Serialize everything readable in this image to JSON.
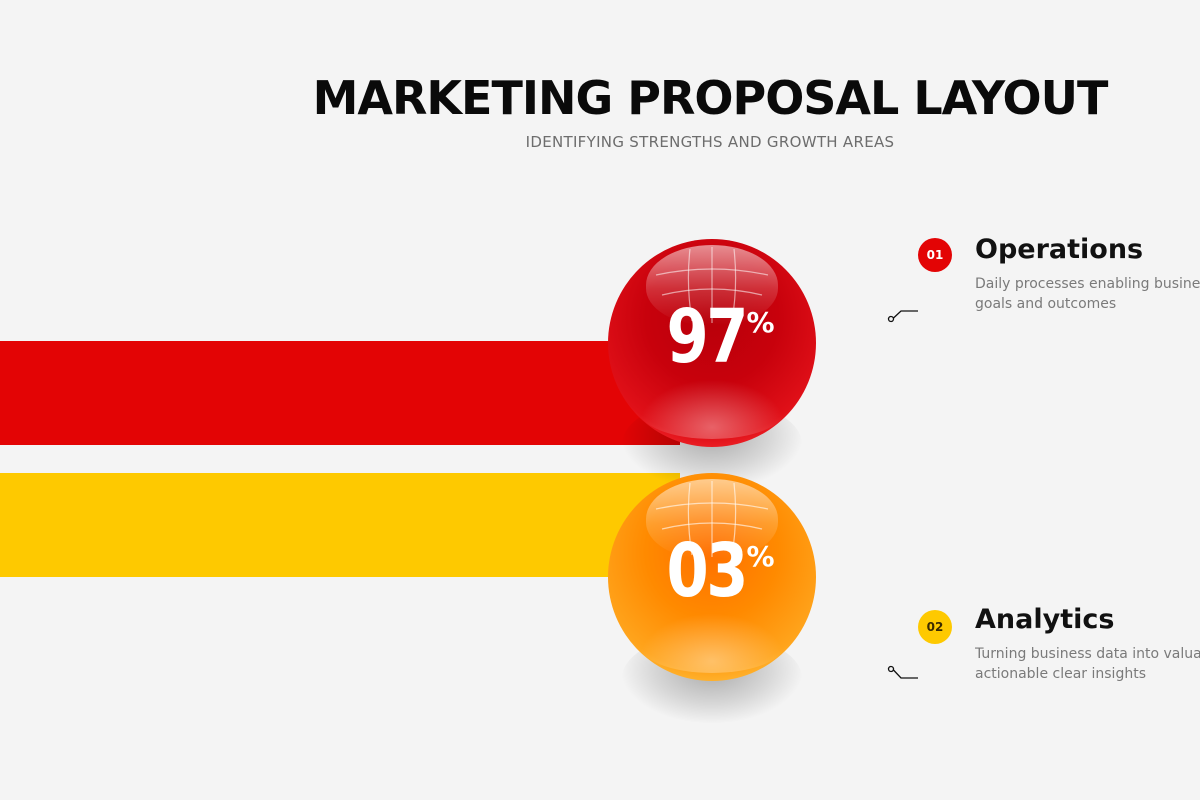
{
  "header": {
    "title": "MARKETING PROPOSAL LAYOUT",
    "subtitle": "IDENTIFYING STRENGTHS AND GROWTH AREAS"
  },
  "items": [
    {
      "number": "01",
      "title": "Operations",
      "description_line1": "Daily processes enabling business",
      "description_line2": "goals and outcomes",
      "percent_value": "97",
      "percent_symbol": "%",
      "band_color": "#e30405",
      "sphere_color": "#d0010c"
    },
    {
      "number": "02",
      "title": "Analytics",
      "description_line1": "Turning business data into valuable",
      "description_line2": "actionable clear insights",
      "percent_value": "03",
      "percent_symbol": "%",
      "band_color": "#fec900",
      "sphere_color": "#ff8a00"
    }
  ]
}
